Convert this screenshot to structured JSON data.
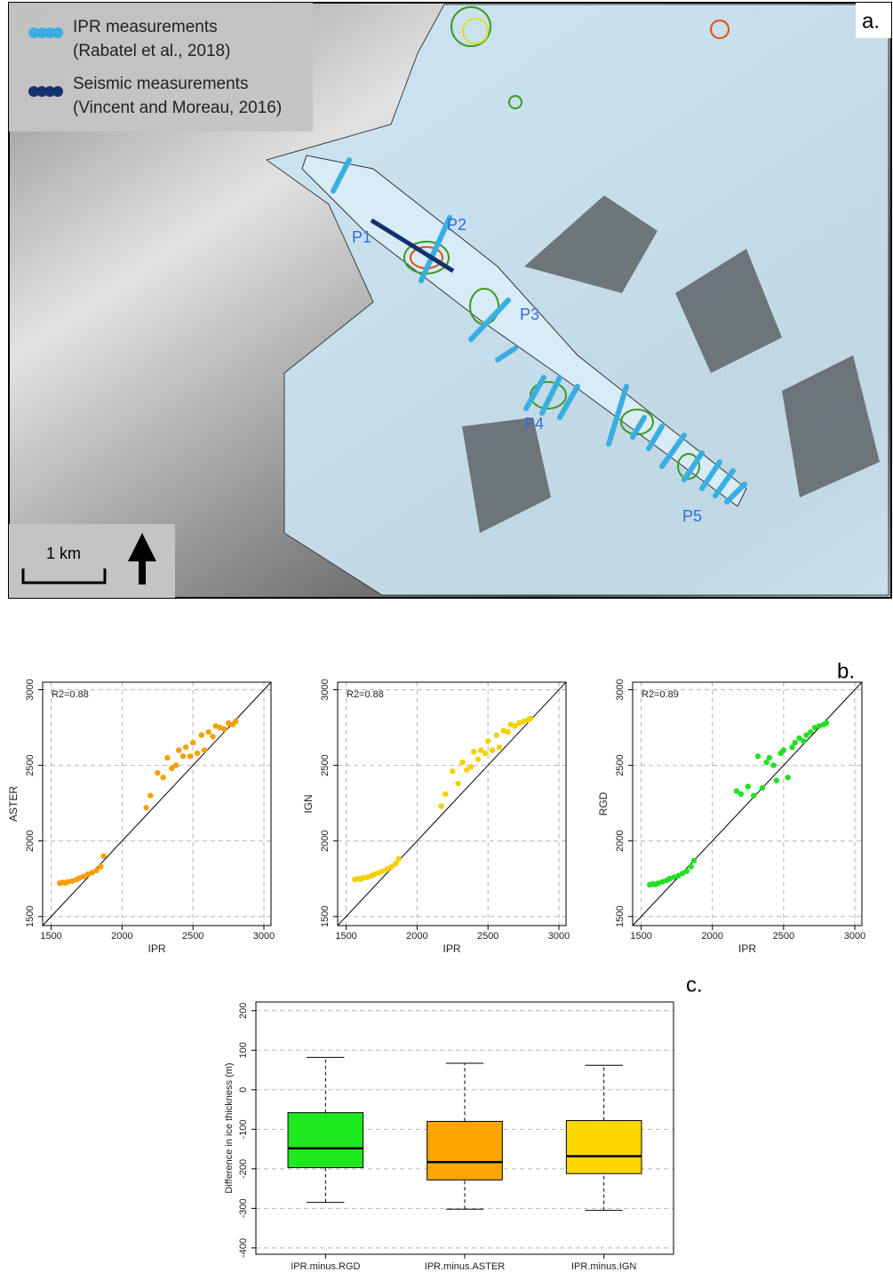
{
  "map": {
    "panel_label": "a.",
    "legend": [
      {
        "name": "IPR measurements",
        "source": "(Rabatel et al., 2018)",
        "color": "#3aaee0"
      },
      {
        "name": "Seismic measurements",
        "source": "(Vincent and Moreau, 2016)",
        "color": "#15306e"
      }
    ],
    "profiles": [
      "P1",
      "P2",
      "P3",
      "P4",
      "P5"
    ],
    "scale_label": "1 km"
  },
  "panel_labels": {
    "b": "b.",
    "c": "c."
  },
  "chart_data": [
    {
      "type": "scatter",
      "xlabel": "IPR",
      "ylabel": "ASTER",
      "annotation": "R2=0.88",
      "color": "#f5a000",
      "x": [
        1560,
        1580,
        1600,
        1620,
        1650,
        1680,
        1700,
        1730,
        1760,
        1790,
        1820,
        1850,
        1870,
        2170,
        2200,
        2250,
        2290,
        2320,
        2350,
        2380,
        2400,
        2430,
        2450,
        2480,
        2500,
        2530,
        2560,
        2580,
        2610,
        2640,
        2660,
        2690,
        2720,
        2750,
        2780,
        2800
      ],
      "y": [
        1720,
        1725,
        1722,
        1730,
        1735,
        1745,
        1755,
        1765,
        1780,
        1790,
        1805,
        1830,
        1900,
        2220,
        2300,
        2450,
        2420,
        2550,
        2480,
        2500,
        2600,
        2560,
        2620,
        2560,
        2650,
        2580,
        2700,
        2600,
        2720,
        2690,
        2760,
        2750,
        2740,
        2780,
        2770,
        2790
      ],
      "xlim": [
        1440,
        3050
      ],
      "ylim": [
        1440,
        3050
      ],
      "xticks": [
        1500,
        2000,
        2500,
        3000
      ],
      "yticks": [
        1500,
        2000,
        2500,
        3000
      ],
      "grid": true
    },
    {
      "type": "scatter",
      "xlabel": "IPR",
      "ylabel": "IGN",
      "annotation": "R2=0.88",
      "color": "#f5d000",
      "x": [
        1560,
        1580,
        1600,
        1620,
        1650,
        1680,
        1700,
        1730,
        1760,
        1790,
        1820,
        1850,
        1870,
        2170,
        2200,
        2250,
        2290,
        2320,
        2350,
        2380,
        2400,
        2430,
        2450,
        2480,
        2500,
        2530,
        2560,
        2580,
        2610,
        2640,
        2660,
        2690,
        2720,
        2750,
        2780,
        2800
      ],
      "y": [
        1745,
        1750,
        1748,
        1755,
        1760,
        1770,
        1780,
        1790,
        1800,
        1815,
        1830,
        1850,
        1880,
        2230,
        2310,
        2460,
        2380,
        2520,
        2470,
        2490,
        2590,
        2540,
        2600,
        2580,
        2660,
        2600,
        2700,
        2620,
        2730,
        2720,
        2770,
        2760,
        2780,
        2790,
        2800,
        2810
      ],
      "xlim": [
        1440,
        3050
      ],
      "ylim": [
        1440,
        3050
      ],
      "xticks": [
        1500,
        2000,
        2500,
        3000
      ],
      "yticks": [
        1500,
        2000,
        2500,
        3000
      ],
      "grid": true
    },
    {
      "type": "scatter",
      "xlabel": "IPR",
      "ylabel": "RGD",
      "annotation": "R2=0.89",
      "color": "#22e022",
      "x": [
        1560,
        1580,
        1600,
        1620,
        1650,
        1680,
        1700,
        1730,
        1760,
        1790,
        1820,
        1850,
        1870,
        2170,
        2200,
        2250,
        2290,
        2320,
        2350,
        2380,
        2400,
        2430,
        2450,
        2480,
        2500,
        2530,
        2560,
        2580,
        2610,
        2640,
        2660,
        2690,
        2720,
        2750,
        2780,
        2800
      ],
      "y": [
        1710,
        1715,
        1712,
        1720,
        1730,
        1740,
        1750,
        1760,
        1770,
        1785,
        1800,
        1830,
        1870,
        2330,
        2310,
        2360,
        2300,
        2560,
        2350,
        2520,
        2550,
        2500,
        2400,
        2580,
        2600,
        2420,
        2620,
        2650,
        2680,
        2660,
        2700,
        2720,
        2750,
        2760,
        2770,
        2780
      ],
      "xlim": [
        1440,
        3050
      ],
      "ylim": [
        1440,
        3050
      ],
      "xticks": [
        1500,
        2000,
        2500,
        3000
      ],
      "yticks": [
        1500,
        2000,
        2500,
        3000
      ],
      "grid": true
    },
    {
      "type": "box",
      "ylabel": "Difference in ice thickness (m)",
      "categories": [
        "IPR.minus.RGD",
        "IPR.minus.ASTER",
        "IPR.minus.IGN"
      ],
      "colors": [
        "#1ee81e",
        "#ffa500",
        "#ffd700"
      ],
      "whisker_low": [
        -285,
        -302,
        -305
      ],
      "q1": [
        -197,
        -228,
        -212
      ],
      "median": [
        -148,
        -183,
        -168
      ],
      "q3": [
        -58,
        -80,
        -78
      ],
      "whisker_high": [
        82,
        67,
        62
      ],
      "ylim": [
        -416,
        222
      ],
      "yticks": [
        -400,
        -300,
        -200,
        -100,
        0,
        100,
        200
      ],
      "grid": true
    }
  ]
}
